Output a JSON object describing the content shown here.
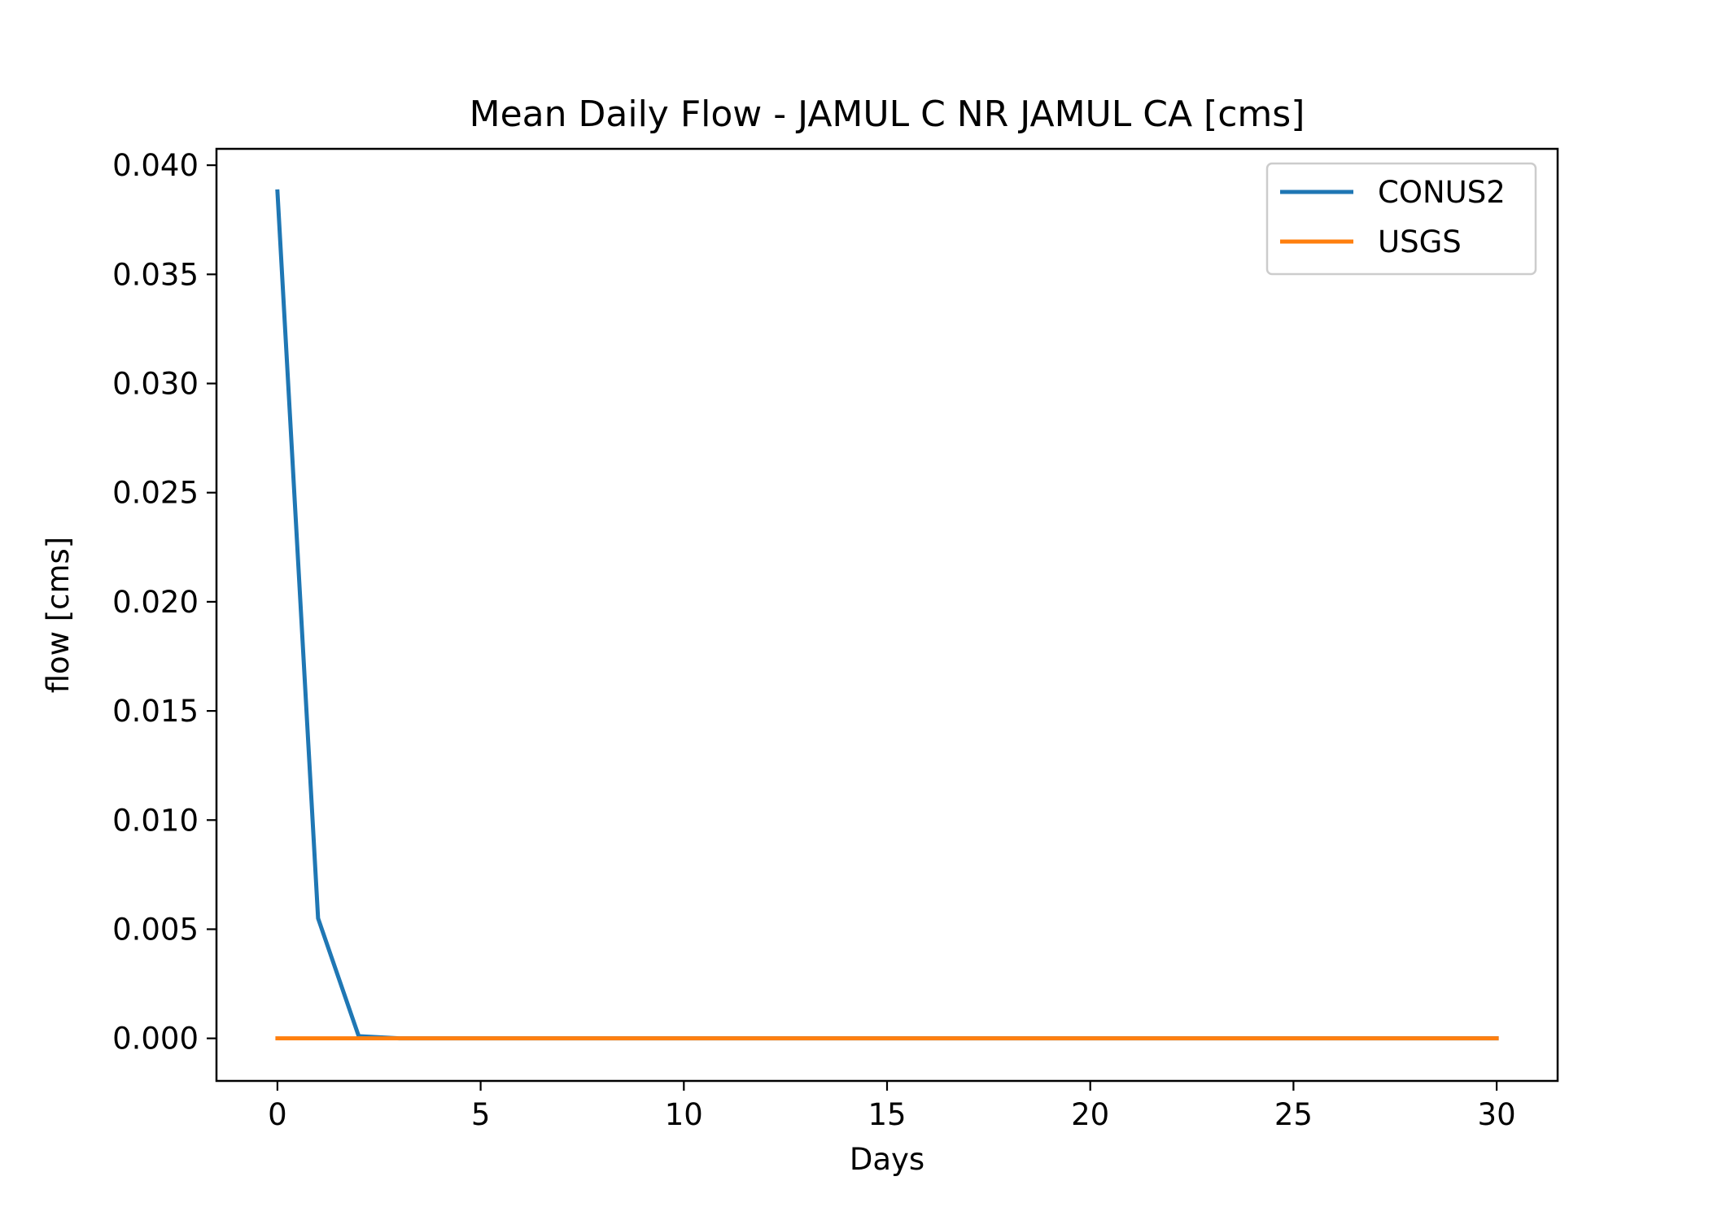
{
  "chart_data": {
    "type": "line",
    "title": "Mean Daily Flow - JAMUL C NR JAMUL CA [cms]",
    "xlabel": "Days",
    "ylabel": "flow [cms]",
    "xlim": [
      -1.5,
      31.5
    ],
    "ylim": [
      -0.00195,
      0.04075
    ],
    "xticks": [
      0,
      5,
      10,
      15,
      20,
      25,
      30
    ],
    "yticks": [
      0.0,
      0.005,
      0.01,
      0.015,
      0.02,
      0.025,
      0.03,
      0.035,
      0.04
    ],
    "ytick_labels": [
      "0.000",
      "0.005",
      "0.010",
      "0.015",
      "0.020",
      "0.025",
      "0.030",
      "0.035",
      "0.040"
    ],
    "grid": false,
    "legend_position": "upper right",
    "x": [
      0,
      1,
      2,
      3,
      4,
      5,
      6,
      7,
      8,
      9,
      10,
      11,
      12,
      13,
      14,
      15,
      16,
      17,
      18,
      19,
      20,
      21,
      22,
      23,
      24,
      25,
      26,
      27,
      28,
      29,
      30
    ],
    "series": [
      {
        "name": "CONUS2",
        "color": "#1f77b4",
        "values": [
          0.0388,
          0.0055,
          0.0001,
          0,
          0,
          0,
          0,
          0,
          0,
          0,
          0,
          0,
          0,
          0,
          0,
          0,
          0,
          0,
          0,
          0,
          0,
          0,
          0,
          0,
          0,
          0,
          0,
          0,
          0,
          0,
          0
        ]
      },
      {
        "name": "USGS",
        "color": "#ff7f0e",
        "values": [
          0,
          0,
          0,
          0,
          0,
          0,
          0,
          0,
          0,
          0,
          0,
          0,
          0,
          0,
          0,
          0,
          0,
          0,
          0,
          0,
          0,
          0,
          0,
          0,
          0,
          0,
          0,
          0,
          0,
          0,
          0
        ]
      }
    ]
  }
}
